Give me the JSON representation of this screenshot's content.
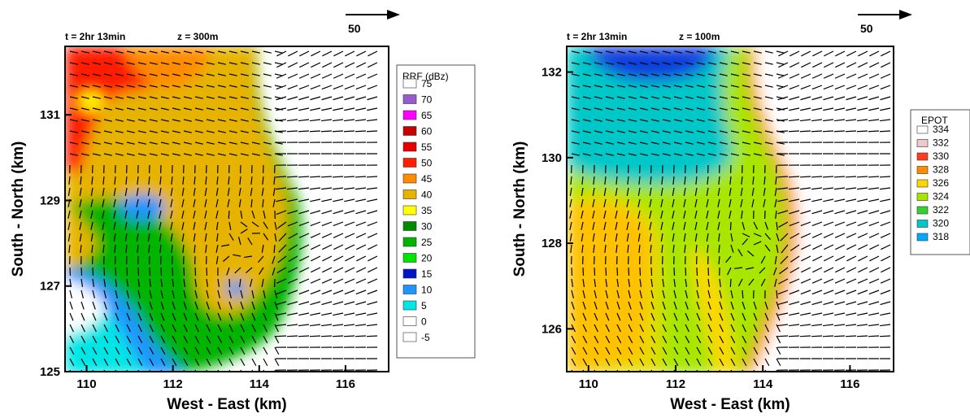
{
  "chart_data": [
    {
      "type": "heatmap",
      "variant": "filled-contour-with-wind-vectors",
      "header_time": "t = 2hr 13min",
      "header_height": "z = 300m",
      "ref_vector_label": "50",
      "xlabel": "West - East (km)",
      "ylabel": "South - North (km)",
      "xlim": [
        109.5,
        117.0
      ],
      "ylim": [
        125.0,
        132.6
      ],
      "x_ticks": [
        110,
        112,
        114,
        116
      ],
      "y_ticks": [
        125,
        127,
        129,
        131
      ],
      "x_tick_labels": [
        "110",
        "112",
        "114",
        "116"
      ],
      "y_tick_labels": [
        "125",
        "127",
        "129",
        "131"
      ],
      "legend_position": "right",
      "legend": {
        "title": "RRF (dBz)",
        "levels": [
          75,
          70,
          65,
          60,
          55,
          50,
          45,
          40,
          35,
          30,
          25,
          20,
          15,
          10,
          5,
          0,
          -5
        ],
        "labels": [
          "75",
          "70",
          "65",
          "60",
          "55",
          "50",
          "45",
          "40",
          "35",
          "30",
          "25",
          "20",
          "15",
          "10",
          "5",
          "0",
          "-5"
        ],
        "colors": [
          "#ffffff",
          "#9a5ccc",
          "#ff00ff",
          "#c80000",
          "#e60000",
          "#ff1e00",
          "#ff8c00",
          "#e6b400",
          "#ffff00",
          "#008c00",
          "#00b400",
          "#00e600",
          "#0014c8",
          "#1e96ff",
          "#00e6e6",
          "#ffffff",
          "#ffffff"
        ]
      },
      "features": [
        {
          "kind": "field-max",
          "label": "high reflectivity (~45-55 dBz)",
          "x": 111.0,
          "y": 132.0
        },
        {
          "kind": "vortex",
          "label": "circulation",
          "x": 113.9,
          "y": 128.0
        },
        {
          "kind": "boundary",
          "label": "sharp eastern edge of echo",
          "x": 115.0,
          "y": 129.0
        }
      ]
    },
    {
      "type": "heatmap",
      "variant": "filled-contour-with-wind-vectors",
      "header_time": "t = 2hr 13min",
      "header_height": "z = 100m",
      "ref_vector_label": "50",
      "xlabel": "West - East (km)",
      "ylabel": "South - North (km)",
      "xlim": [
        109.5,
        117.0
      ],
      "ylim": [
        125.0,
        132.6
      ],
      "x_ticks": [
        110,
        112,
        114,
        116
      ],
      "y_ticks": [
        126,
        128,
        130,
        132
      ],
      "x_tick_labels": [
        "110",
        "112",
        "114",
        "116"
      ],
      "y_tick_labels": [
        "126",
        "128",
        "130",
        "132"
      ],
      "legend_position": "right",
      "legend": {
        "title": "EPOT",
        "levels": [
          334,
          332,
          330,
          328,
          326,
          324,
          322,
          320,
          318
        ],
        "labels": [
          "334",
          "332",
          "330",
          "328",
          "326",
          "324",
          "322",
          "320",
          "318"
        ],
        "colors": [
          "#ffffff",
          "#f2c8c8",
          "#ff3c1e",
          "#ff8c00",
          "#ffd700",
          "#a8e600",
          "#32d232",
          "#00c8c8",
          "#00aaff",
          "#0a3cdc"
        ]
      },
      "features": [
        {
          "kind": "field-min",
          "label": "cold (~318-320 K)",
          "x": 111.5,
          "y": 132.2
        },
        {
          "kind": "vortex",
          "label": "circulation",
          "x": 113.9,
          "y": 127.8
        },
        {
          "kind": "boundary",
          "label": "sharp warm edge (~332 K)",
          "x": 115.0,
          "y": 129.0
        }
      ]
    }
  ]
}
